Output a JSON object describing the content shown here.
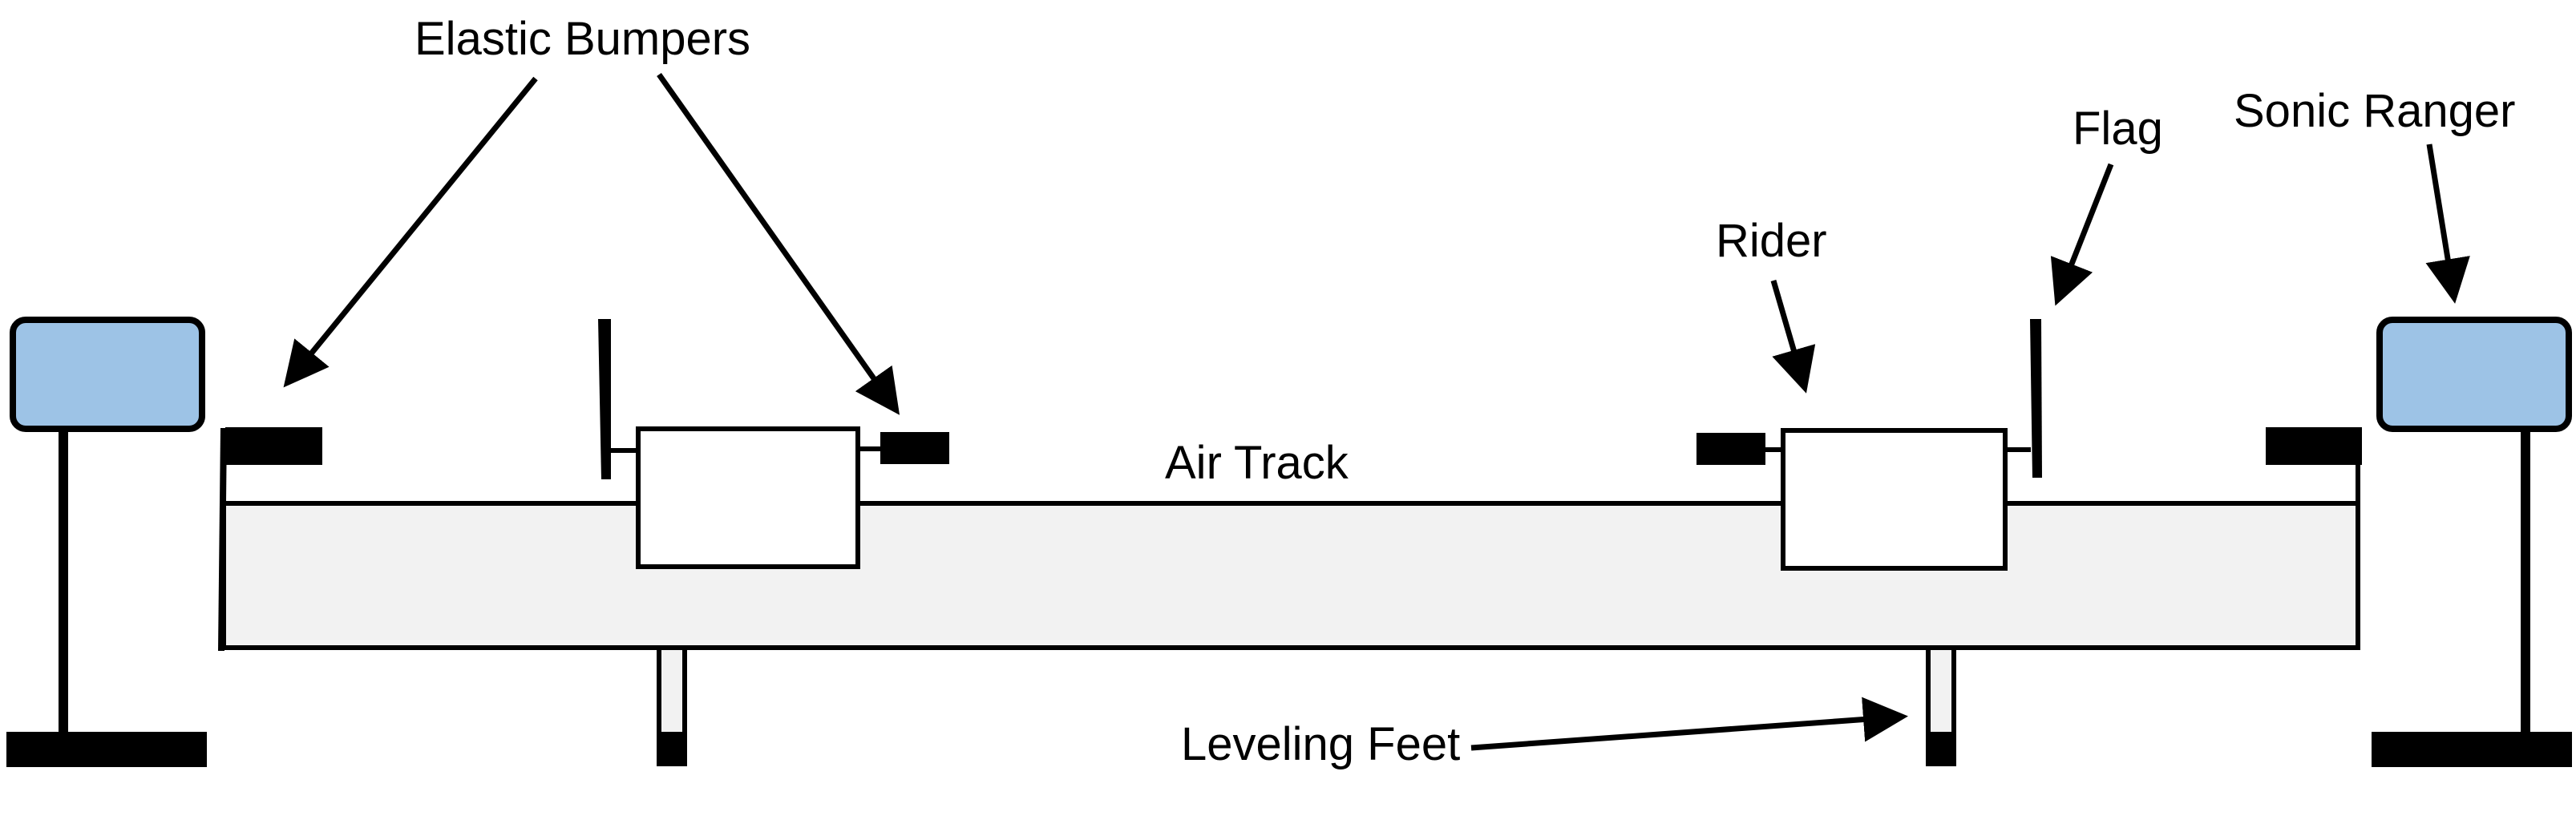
{
  "labels": {
    "elastic_bumpers": "Elastic Bumpers",
    "flag": "Flag",
    "sonic_ranger": "Sonic Ranger",
    "rider": "Rider",
    "air_track": "Air Track",
    "leveling_feet": "Leveling Feet"
  },
  "colors": {
    "sonic_ranger_fill": "#9dc3e6",
    "track_fill": "#f2f2f2",
    "rider_fill": "#ffffff",
    "stroke": "#000000"
  },
  "icons": {
    "arrow": "arrowhead"
  }
}
